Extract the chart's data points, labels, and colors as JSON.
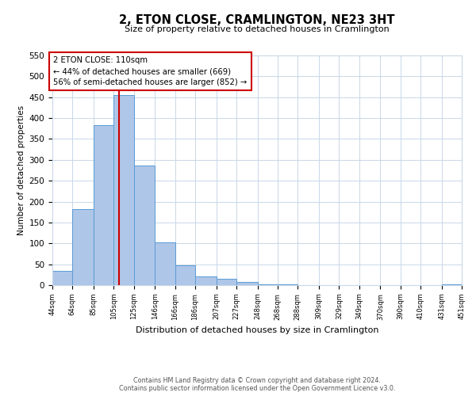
{
  "title": "2, ETON CLOSE, CRAMLINGTON, NE23 3HT",
  "subtitle": "Size of property relative to detached houses in Cramlington",
  "xlabel": "Distribution of detached houses by size in Cramlington",
  "ylabel": "Number of detached properties",
  "bar_edges": [
    44,
    64,
    85,
    105,
    125,
    146,
    166,
    186,
    207,
    227,
    248,
    268,
    288,
    309,
    329,
    349,
    370,
    390,
    410,
    431,
    451
  ],
  "bar_heights": [
    35,
    183,
    384,
    456,
    287,
    103,
    48,
    20,
    15,
    8,
    2,
    1,
    0,
    0,
    0,
    0,
    0,
    0,
    0,
    1
  ],
  "bar_color": "#aec6e8",
  "bar_edge_color": "#5b9bd5",
  "vline_x": 110,
  "vline_color": "#cc0000",
  "ylim": [
    0,
    550
  ],
  "annotation_text": "2 ETON CLOSE: 110sqm\n← 44% of detached houses are smaller (669)\n56% of semi-detached houses are larger (852) →",
  "annotation_box_color": "#cc0000",
  "grid_color": "#c8d8e8",
  "footer_line1": "Contains HM Land Registry data © Crown copyright and database right 2024.",
  "footer_line2": "Contains public sector information licensed under the Open Government Licence v3.0.",
  "tick_labels": [
    "44sqm",
    "64sqm",
    "85sqm",
    "105sqm",
    "125sqm",
    "146sqm",
    "166sqm",
    "186sqm",
    "207sqm",
    "227sqm",
    "248sqm",
    "268sqm",
    "288sqm",
    "309sqm",
    "329sqm",
    "349sqm",
    "370sqm",
    "390sqm",
    "410sqm",
    "431sqm",
    "451sqm"
  ],
  "yticks": [
    0,
    50,
    100,
    150,
    200,
    250,
    300,
    350,
    400,
    450,
    500,
    550
  ]
}
